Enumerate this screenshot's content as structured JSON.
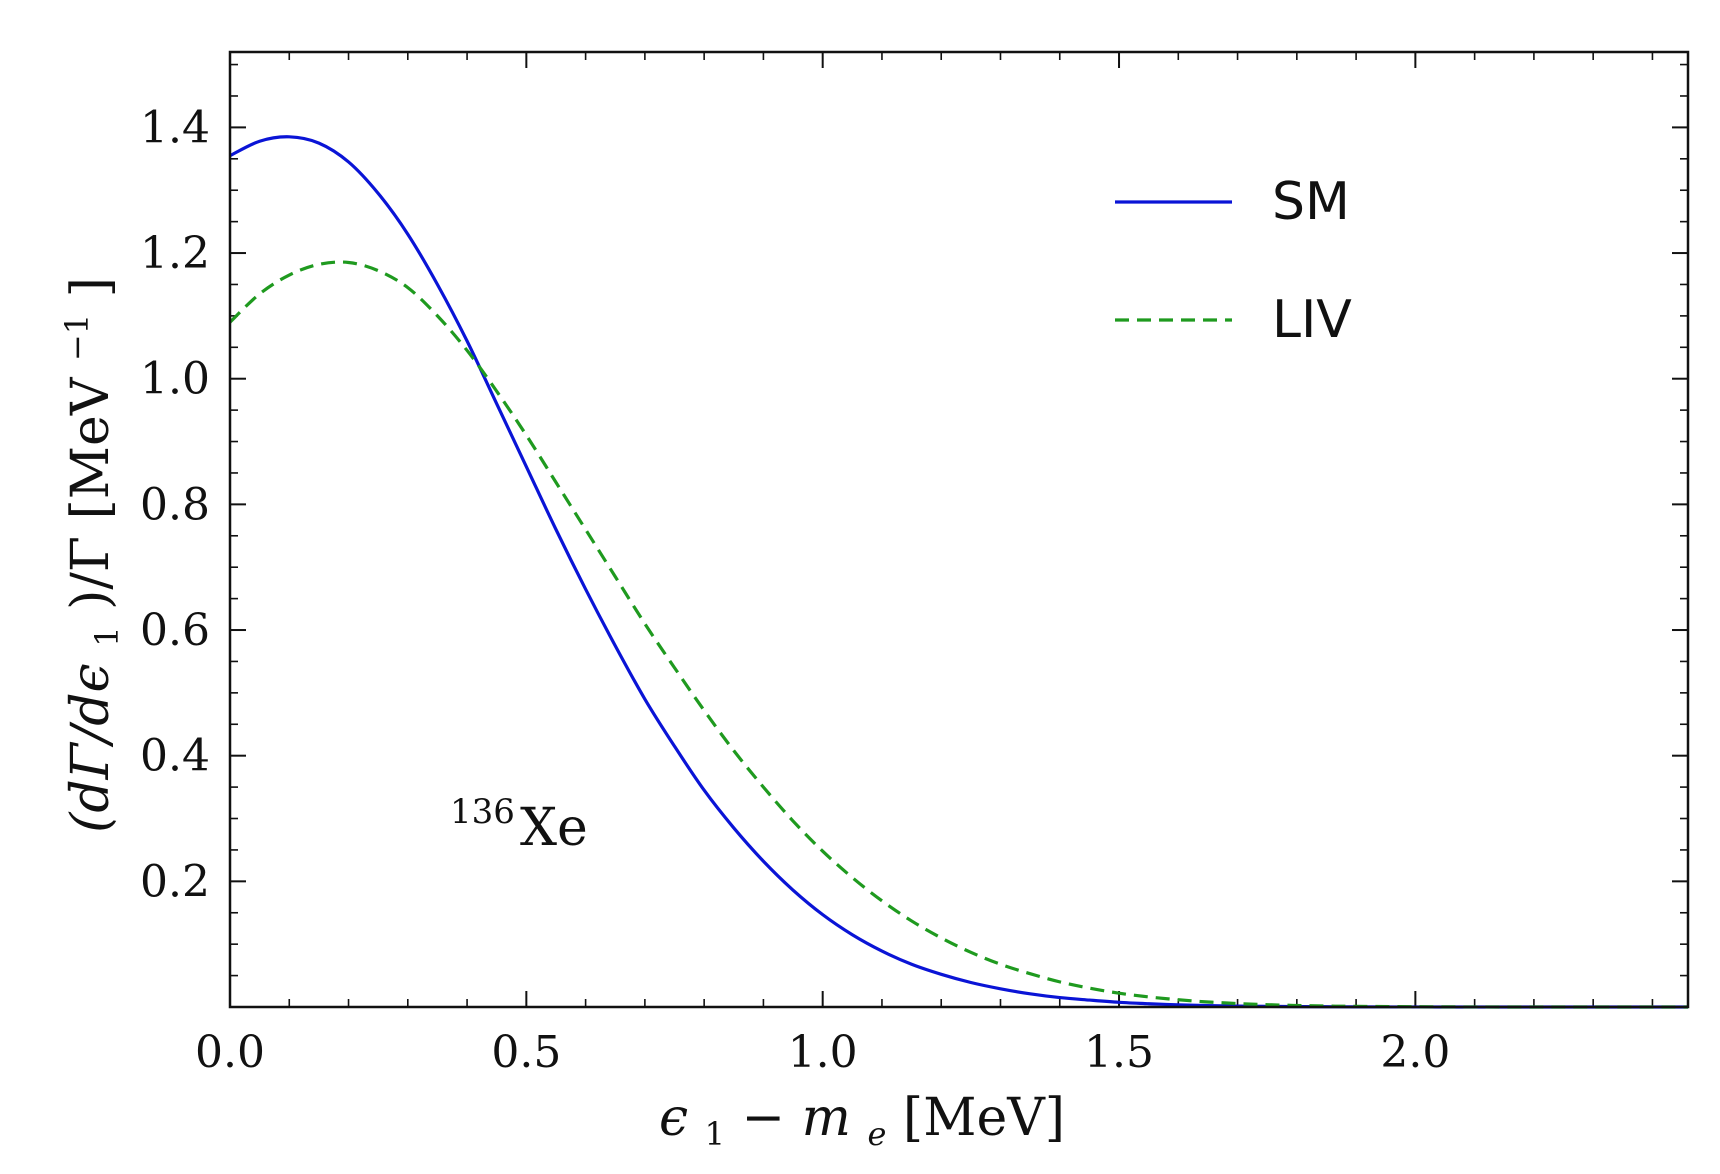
{
  "chart_data": {
    "type": "line",
    "title": "",
    "xlabel": {
      "main": "ϵ",
      "sub1": "1",
      "minus": "−",
      "m": "m",
      "sub2": "e",
      "unit": " [MeV]"
    },
    "ylabel": {
      "part1": "(dΓ/dϵ",
      "sub": "1",
      "part2": ")/Γ [MeV",
      "sup": "−1",
      "part3": "]"
    },
    "xlim": [
      0,
      2.46
    ],
    "ylim": [
      0,
      1.52
    ],
    "xticks": [
      0.0,
      0.5,
      1.0,
      1.5,
      2.0
    ],
    "xtick_labels": [
      "0.0",
      "0.5",
      "1.0",
      "1.5",
      "2.0"
    ],
    "yticks": [
      0.2,
      0.4,
      0.6,
      0.8,
      1.0,
      1.2,
      1.4
    ],
    "ytick_labels": [
      "0.2",
      "0.4",
      "0.6",
      "0.8",
      "1.0",
      "1.2",
      "1.4"
    ],
    "legend_position": "top-right",
    "annotation": {
      "isotope_mass": "136",
      "isotope_symbol": "Xe"
    },
    "series": [
      {
        "name": "SM",
        "color": "#0a14d6",
        "style": "solid",
        "x": [
          0,
          0.05,
          0.1,
          0.15,
          0.2,
          0.25,
          0.3,
          0.35,
          0.4,
          0.45,
          0.5,
          0.55,
          0.6,
          0.65,
          0.7,
          0.75,
          0.8,
          0.85,
          0.9,
          0.95,
          1.0,
          1.05,
          1.1,
          1.15,
          1.2,
          1.25,
          1.3,
          1.35,
          1.4,
          1.45,
          1.5,
          1.55,
          1.6,
          1.65,
          1.7,
          1.75,
          1.8,
          1.85,
          1.9,
          2.0,
          2.1,
          2.2,
          2.3,
          2.46
        ],
        "y": [
          1.355,
          1.378,
          1.385,
          1.375,
          1.345,
          1.295,
          1.23,
          1.15,
          1.06,
          0.96,
          0.86,
          0.76,
          0.665,
          0.575,
          0.49,
          0.415,
          0.345,
          0.285,
          0.232,
          0.186,
          0.147,
          0.115,
          0.089,
          0.068,
          0.052,
          0.039,
          0.029,
          0.021,
          0.015,
          0.011,
          0.0075,
          0.0052,
          0.0035,
          0.0023,
          0.0015,
          0.001,
          0.0006,
          0.0004,
          0.0002,
          0.0001,
          0.0,
          0.0,
          0.0,
          0.0
        ]
      },
      {
        "name": "LIV",
        "color": "#1f9a1f",
        "style": "dashed",
        "x": [
          0,
          0.05,
          0.1,
          0.15,
          0.2,
          0.25,
          0.3,
          0.35,
          0.4,
          0.45,
          0.5,
          0.55,
          0.6,
          0.65,
          0.7,
          0.75,
          0.8,
          0.85,
          0.9,
          0.95,
          1.0,
          1.05,
          1.1,
          1.15,
          1.2,
          1.25,
          1.3,
          1.35,
          1.4,
          1.45,
          1.5,
          1.55,
          1.6,
          1.65,
          1.7,
          1.75,
          1.8,
          1.85,
          1.9,
          2.0,
          2.1,
          2.2,
          2.3,
          2.46
        ],
        "y": [
          1.09,
          1.135,
          1.165,
          1.182,
          1.185,
          1.172,
          1.145,
          1.1,
          1.045,
          0.98,
          0.91,
          0.835,
          0.76,
          0.685,
          0.61,
          0.54,
          0.472,
          0.408,
          0.35,
          0.296,
          0.248,
          0.206,
          0.169,
          0.137,
          0.11,
          0.087,
          0.068,
          0.053,
          0.04,
          0.03,
          0.022,
          0.016,
          0.0115,
          0.008,
          0.0055,
          0.0037,
          0.0024,
          0.0015,
          0.001,
          0.0004,
          0.0001,
          0.0,
          0.0,
          0.0
        ]
      }
    ]
  }
}
